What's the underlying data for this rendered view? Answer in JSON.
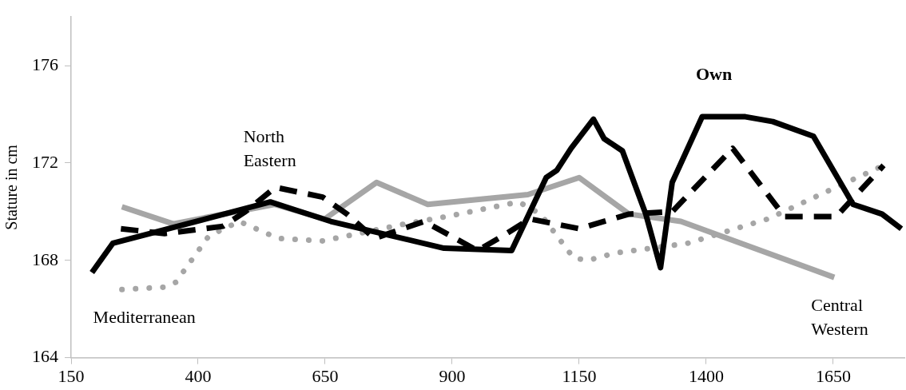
{
  "chart_data": {
    "type": "line",
    "ylabel": "Stature in cm",
    "xlim": [
      150,
      1790
    ],
    "xticks": [
      150,
      400,
      650,
      900,
      1150,
      1400,
      1650
    ],
    "ylim": [
      164,
      178
    ],
    "yticks": [
      164,
      168,
      172,
      176
    ],
    "grid": false,
    "legend": false,
    "marker": "none",
    "series": [
      {
        "name": "Own",
        "color": "#000000",
        "line_style": "solid",
        "x": [
          191,
          232,
          542,
          661,
          884,
          1017,
          1085,
          1106,
          1134,
          1178,
          1199,
          1235,
          1281,
          1310,
          1333,
          1392,
          1477,
          1531,
          1611,
          1689,
          1746,
          1784
        ],
        "values": [
          167.5,
          168.7,
          170.4,
          169.6,
          168.5,
          168.4,
          171.4,
          171.7,
          172.6,
          173.8,
          173.0,
          172.5,
          169.9,
          167.7,
          171.2,
          173.9,
          173.9,
          173.7,
          173.1,
          170.3,
          169.9,
          169.3
        ]
      },
      {
        "name": "North Eastern",
        "color": "#000000",
        "line_style": "dashed",
        "x": [
          248,
          334,
          449,
          493,
          552,
          645,
          693,
          747,
          845,
          950,
          999,
          1053,
          1150,
          1248,
          1333,
          1452,
          1554,
          1656,
          1749
        ],
        "values": [
          169.3,
          169.1,
          169.4,
          170.0,
          171.0,
          170.6,
          169.9,
          168.9,
          169.6,
          168.4,
          169.0,
          169.7,
          169.3,
          169.9,
          170.0,
          172.6,
          169.8,
          169.8,
          171.9
        ]
      },
      {
        "name": "Mediterranean",
        "color": "#a6a6a6",
        "line_style": "dotted",
        "x": [
          250,
          334,
          356,
          421,
          481,
          558,
          645,
          808,
          889,
          1031,
          1074,
          1139,
          1167,
          1221,
          1363,
          1521,
          1645,
          1749
        ],
        "values": [
          166.8,
          166.9,
          167.1,
          169.0,
          169.6,
          168.9,
          168.8,
          169.5,
          169.8,
          170.4,
          169.9,
          168.1,
          168.0,
          168.3,
          168.7,
          169.7,
          170.9,
          171.9
        ]
      },
      {
        "name": "Central Western",
        "color": "#a6a6a6",
        "line_style": "solid",
        "x": [
          250,
          351,
          550,
          649,
          751,
          852,
          1049,
          1150,
          1248,
          1350,
          1652
        ],
        "values": [
          170.2,
          169.5,
          170.3,
          169.7,
          171.2,
          170.3,
          170.7,
          171.4,
          169.9,
          169.6,
          167.3
        ]
      }
    ]
  }
}
